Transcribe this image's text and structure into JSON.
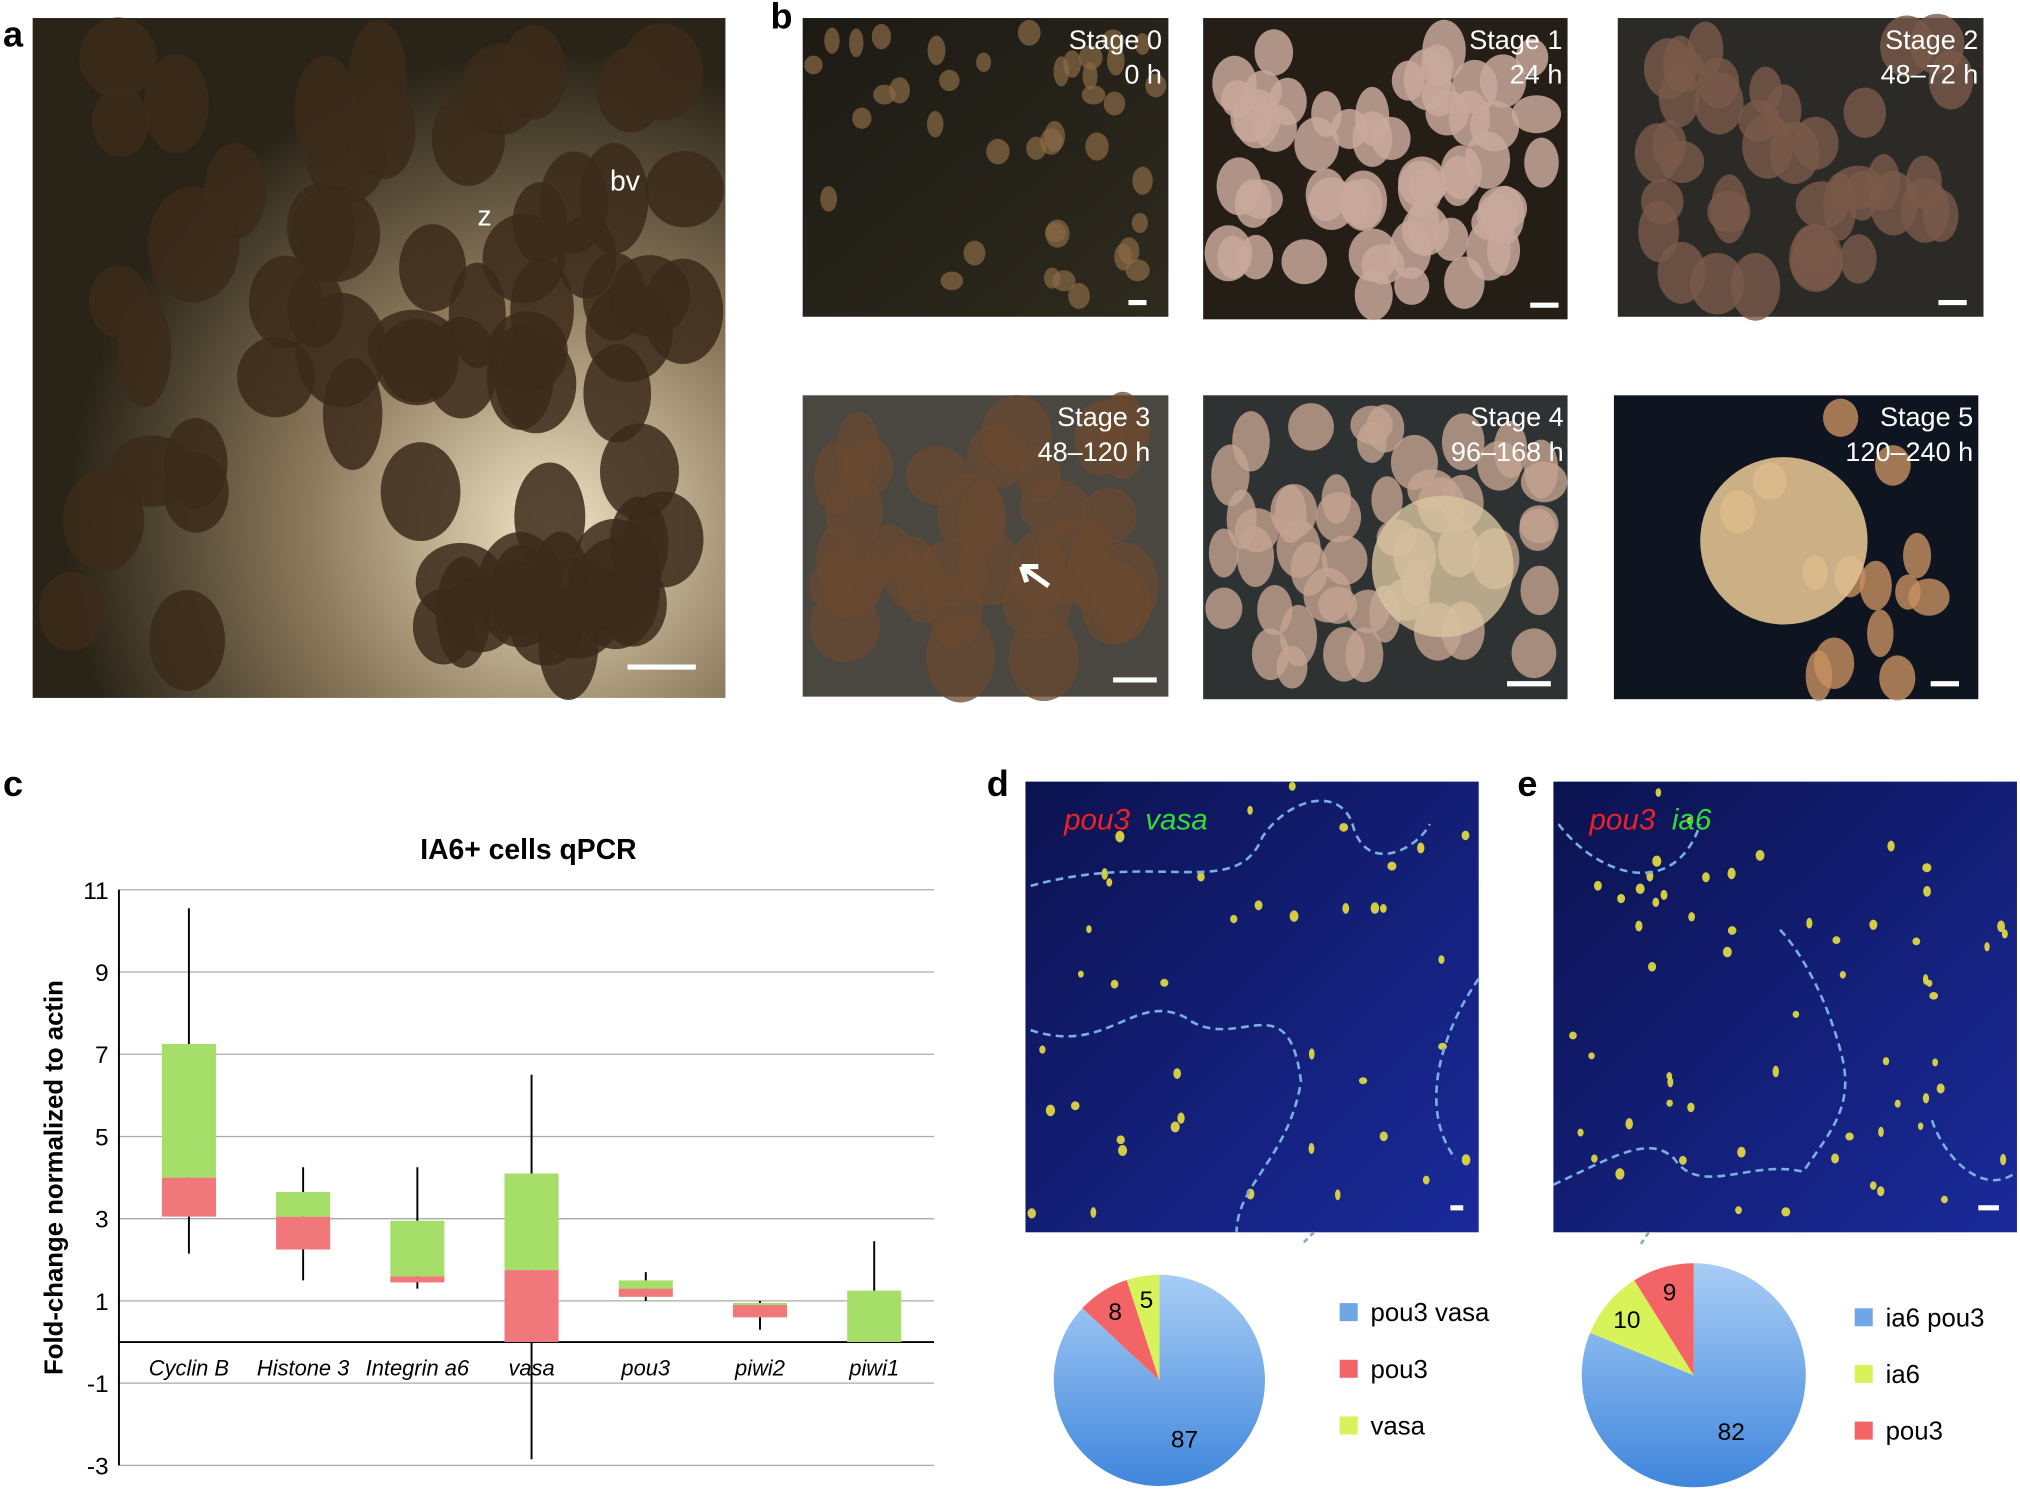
{
  "panels": {
    "a": {
      "label": "a",
      "annotations": [
        "z",
        "bv"
      ]
    },
    "b": {
      "label": "b",
      "stages": [
        {
          "name": "Stage 0",
          "time": "0 h"
        },
        {
          "name": "Stage 1",
          "time": "24 h"
        },
        {
          "name": "Stage 2",
          "time": "48–72 h"
        },
        {
          "name": "Stage 3",
          "time": "48–120 h"
        },
        {
          "name": "Stage 4",
          "time": "96–168 h"
        },
        {
          "name": "Stage 5",
          "time": "120–240 h"
        }
      ]
    },
    "c": {
      "label": "c"
    },
    "d": {
      "label": "d",
      "stain": [
        "pou3",
        "vasa"
      ]
    },
    "e": {
      "label": "e",
      "stain": [
        "pou3",
        "ia6"
      ]
    }
  },
  "chart_data": [
    {
      "type": "box",
      "title": "IA6+ cells qPCR",
      "y_label": "Fold-change normalized to actin",
      "categories": [
        "Cyclin B",
        "Histone 3",
        "Integrin a6",
        "vasa",
        "pou3",
        "piwi2",
        "piwi1"
      ],
      "q1": [
        3.05,
        2.25,
        1.45,
        0,
        1.1,
        0.6,
        0
      ],
      "median": [
        4.0,
        3.05,
        1.6,
        1.75,
        1.3,
        0.9,
        0
      ],
      "q3": [
        7.25,
        3.65,
        2.95,
        4.1,
        1.5,
        0.95,
        1.25
      ],
      "whisker_min": [
        2.15,
        1.5,
        1.3,
        -2.85,
        1.0,
        0.3,
        0
      ],
      "whisker_max": [
        10.55,
        4.25,
        4.25,
        6.5,
        1.7,
        1.0,
        2.45
      ],
      "lower_color": "#f0787a",
      "upper_color": "#a6de6a",
      "ylim": [
        -3,
        11
      ],
      "yticks": [
        -3,
        -1,
        1,
        3,
        5,
        7,
        9,
        11
      ],
      "grid": true
    },
    {
      "type": "pie",
      "categories": [
        "pou3 vasa",
        "pou3",
        "vasa"
      ],
      "values": [
        87,
        8,
        5
      ],
      "colors": [
        "#6ea6e6",
        "#f26466",
        "#d8f25a"
      ]
    },
    {
      "type": "pie",
      "categories": [
        "ia6 pou3",
        "ia6",
        "pou3"
      ],
      "values": [
        82,
        10,
        9
      ],
      "colors": [
        "#6ea6e6",
        "#d8f25a",
        "#f26466"
      ]
    }
  ]
}
